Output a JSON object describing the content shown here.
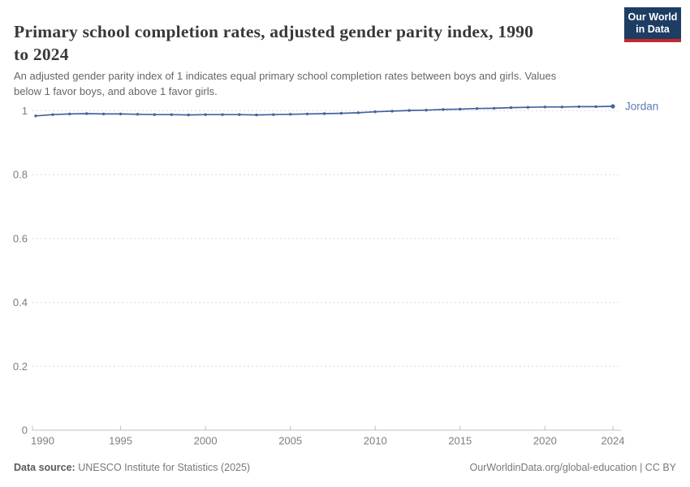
{
  "header": {
    "title": "Primary school completion rates, adjusted gender parity index, 1990 to 2024",
    "title_line1": "Primary school completion rates, adjusted gender parity index, 1990",
    "title_line2": "to 2024",
    "subtitle_line1": "An adjusted gender parity index of 1 indicates equal primary school completion rates between boys and girls. Values",
    "subtitle_line2": "below 1 favor boys, and above 1 favor girls.",
    "logo": {
      "line1": "Our World",
      "line2": "in Data",
      "bg_color": "#1d3d63",
      "accent_color": "#c5282f"
    }
  },
  "chart_data": {
    "type": "line",
    "title": "Primary school completion rates, adjusted gender parity index, 1990 to 2024",
    "xlabel": "",
    "ylabel": "",
    "xlim": [
      1990,
      2024
    ],
    "ylim": [
      0,
      1
    ],
    "grid": "dashed-horizontal",
    "legend_position": "end-of-line-label",
    "series": [
      {
        "name": "Jordan",
        "color": "#44639e",
        "x": [
          1990,
          1991,
          1992,
          1993,
          1994,
          1995,
          1996,
          1997,
          1998,
          1999,
          2000,
          2001,
          2002,
          2003,
          2004,
          2005,
          2006,
          2007,
          2008,
          2009,
          2010,
          2011,
          2012,
          2013,
          2014,
          2015,
          2016,
          2017,
          2018,
          2019,
          2020,
          2021,
          2022,
          2023,
          2024
        ],
        "values": [
          0.984,
          0.988,
          0.99,
          0.991,
          0.99,
          0.99,
          0.989,
          0.988,
          0.988,
          0.987,
          0.988,
          0.988,
          0.988,
          0.987,
          0.988,
          0.989,
          0.99,
          0.991,
          0.992,
          0.994,
          0.997,
          0.999,
          1.001,
          1.002,
          1.004,
          1.005,
          1.007,
          1.008,
          1.01,
          1.011,
          1.012,
          1.012,
          1.013,
          1.013,
          1.014
        ]
      }
    ],
    "xticks": [
      1990,
      1995,
      2000,
      2005,
      2010,
      2015,
      2020,
      2024
    ],
    "xtick_labels": [
      "1990",
      "1995",
      "2000",
      "2005",
      "2010",
      "2015",
      "2020",
      "2024"
    ],
    "yticks": [
      0,
      0.2,
      0.4,
      0.6,
      0.8,
      1
    ],
    "ytick_labels": [
      "0",
      "0.2",
      "0.4",
      "0.6",
      "0.8",
      "1"
    ],
    "colors": {
      "grid": "#dcdcdc",
      "axis": "#c2c2c2",
      "tick_text": "#7d7d7d"
    }
  },
  "footer": {
    "source_label": "Data source:",
    "source_text": " UNESCO Institute for Statistics (2025)",
    "right_text": "OurWorldinData.org/global-education | CC BY"
  }
}
